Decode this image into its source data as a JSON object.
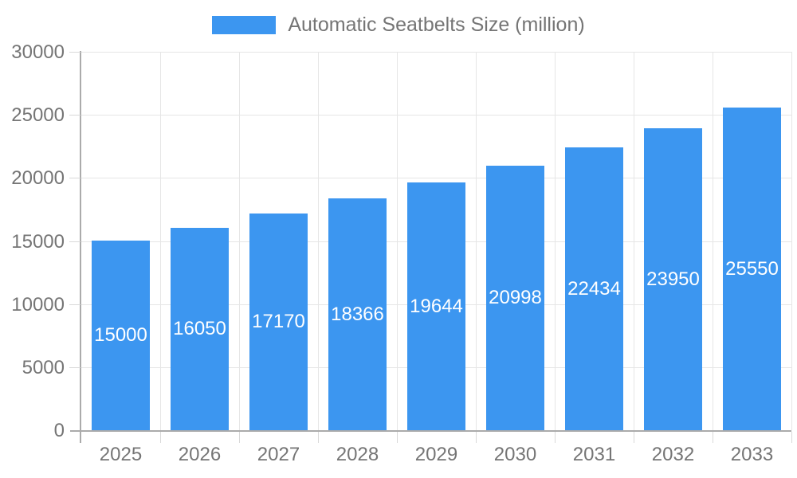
{
  "legend": {
    "label": "Automatic Seatbelts Size (million)"
  },
  "chart_data": {
    "type": "bar",
    "title": "Automatic Seatbelts Size (million)",
    "categories": [
      "2025",
      "2026",
      "2027",
      "2028",
      "2029",
      "2030",
      "2031",
      "2032",
      "2033"
    ],
    "series": [
      {
        "name": "Automatic Seatbelts Size (million)",
        "values": [
          15000,
          16050,
          17170,
          18366,
          19644,
          20998,
          22434,
          23950,
          25550
        ]
      }
    ],
    "xlabel": "",
    "ylabel": "",
    "ylim": [
      0,
      30000
    ],
    "yticks": [
      0,
      5000,
      10000,
      15000,
      20000,
      25000,
      30000
    ],
    "grid": true,
    "legend_position": "top",
    "bar_value_labels": "inside-center",
    "colors": {
      "bar": "#3C96F0",
      "grid_line": "#E6E6E6",
      "tick": "#D9D9D9",
      "axis_line": "#ABABAB",
      "axis_text": "#757575",
      "bar_label_text": "#FFFFFF",
      "background": "#FFFFFF"
    }
  }
}
